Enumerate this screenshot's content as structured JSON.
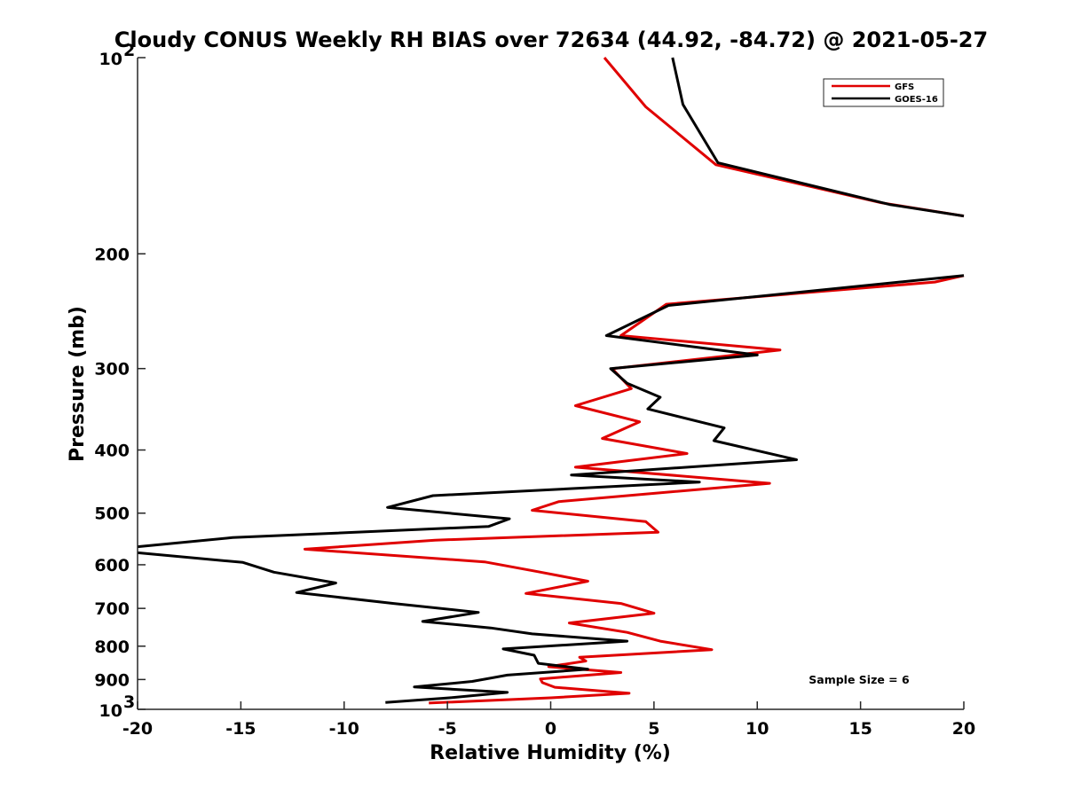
{
  "chart_data": {
    "type": "line",
    "title": "Cloudy CONUS Weekly RH BIAS over 72634 (44.92, -84.72) @ 2021-05-27",
    "xlabel": "Relative Humidity (%)",
    "ylabel": "Pressure (mb)",
    "xlim": [
      -20,
      20
    ],
    "ylim": [
      100,
      1000
    ],
    "y_scale": "log",
    "y_reversed": true,
    "grid": false,
    "legend_position": "top-right",
    "annotation": "Sample Size = 6",
    "x_ticks": [
      "-20",
      "-15",
      "-10",
      "-5",
      "0",
      "5",
      "10",
      "15",
      "20"
    ],
    "y_ticks": [
      {
        "value": 200,
        "label": "200"
      },
      {
        "value": 300,
        "label": "300"
      },
      {
        "value": 400,
        "label": "400"
      },
      {
        "value": 500,
        "label": "500"
      },
      {
        "value": 600,
        "label": "600"
      },
      {
        "value": 700,
        "label": "700"
      },
      {
        "value": 800,
        "label": "800"
      },
      {
        "value": 900,
        "label": "900"
      }
    ],
    "y_tick_pow": [
      {
        "value": 100,
        "base": "10",
        "exp": "2"
      },
      {
        "value": 1000,
        "base": "10",
        "exp": "3"
      }
    ],
    "series": [
      {
        "name": "GFS",
        "color": "#e00000",
        "points": [
          [
            2.6,
            100
          ],
          [
            4.6,
            119
          ],
          [
            8.0,
            146
          ],
          [
            16.0,
            167
          ],
          [
            20.0,
            175
          ],
          [
            null,
            190
          ],
          [
            20.0,
            216
          ],
          [
            18.6,
            221
          ],
          [
            5.6,
            239
          ],
          [
            3.4,
            267
          ],
          [
            11.1,
            281
          ],
          [
            3.0,
            300
          ],
          [
            3.1,
            303
          ],
          [
            3.9,
            322
          ],
          [
            1.2,
            342
          ],
          [
            4.3,
            362
          ],
          [
            2.5,
            384
          ],
          [
            6.6,
            405
          ],
          [
            1.2,
            425
          ],
          [
            10.6,
            450
          ],
          [
            0.4,
            480
          ],
          [
            -0.9,
            495
          ],
          [
            4.6,
            515
          ],
          [
            5.2,
            535
          ],
          [
            -5.6,
            550
          ],
          [
            -11.9,
            568
          ],
          [
            -3.2,
            594
          ],
          [
            -0.6,
            615
          ],
          [
            1.8,
            636
          ],
          [
            -1.2,
            664
          ],
          [
            3.4,
            688
          ],
          [
            5.0,
            712
          ],
          [
            0.9,
            737
          ],
          [
            3.7,
            762
          ],
          [
            5.3,
            786
          ],
          [
            7.8,
            810
          ],
          [
            1.4,
            832
          ],
          [
            1.7,
            843
          ],
          [
            -0.1,
            860
          ],
          [
            3.4,
            878
          ],
          [
            -0.5,
            898
          ],
          [
            -0.4,
            910
          ],
          [
            0.2,
            925
          ],
          [
            3.8,
            945
          ],
          [
            0.0,
            960
          ],
          [
            -5.9,
            978
          ]
        ]
      },
      {
        "name": "GOES-16",
        "color": "#000000",
        "points": [
          [
            5.9,
            100
          ],
          [
            6.4,
            118
          ],
          [
            8.1,
            145
          ],
          [
            16.4,
            168
          ],
          [
            20.0,
            175
          ],
          [
            null,
            190
          ],
          [
            20.0,
            216
          ],
          [
            5.7,
            240
          ],
          [
            2.7,
            267
          ],
          [
            10.0,
            286
          ],
          [
            2.9,
            300
          ],
          [
            3.7,
            316
          ],
          [
            5.3,
            332
          ],
          [
            4.7,
            346
          ],
          [
            8.4,
            370
          ],
          [
            7.9,
            387
          ],
          [
            11.9,
            414
          ],
          [
            1.0,
            437
          ],
          [
            7.2,
            448
          ],
          [
            -5.7,
            470
          ],
          [
            -7.9,
            490
          ],
          [
            -2.0,
            510
          ],
          [
            -3.0,
            524
          ],
          [
            -15.4,
            545
          ],
          [
            -20.0,
            563
          ],
          [
            null,
            570
          ],
          [
            -20.0,
            575
          ],
          [
            -14.9,
            595
          ],
          [
            -13.4,
            616
          ],
          [
            -10.4,
            640
          ],
          [
            -12.3,
            662
          ],
          [
            -7.6,
            688
          ],
          [
            -3.5,
            710
          ],
          [
            -6.2,
            733
          ],
          [
            -2.9,
            750
          ],
          [
            -0.9,
            766
          ],
          [
            3.7,
            786
          ],
          [
            -2.3,
            808
          ],
          [
            -0.8,
            826
          ],
          [
            -0.6,
            850
          ],
          [
            1.8,
            868
          ],
          [
            -2.1,
            886
          ],
          [
            -3.8,
            906
          ],
          [
            -6.6,
            924
          ],
          [
            -2.1,
            942
          ],
          [
            -4.9,
            960
          ],
          [
            -8.0,
            976
          ]
        ]
      }
    ]
  }
}
